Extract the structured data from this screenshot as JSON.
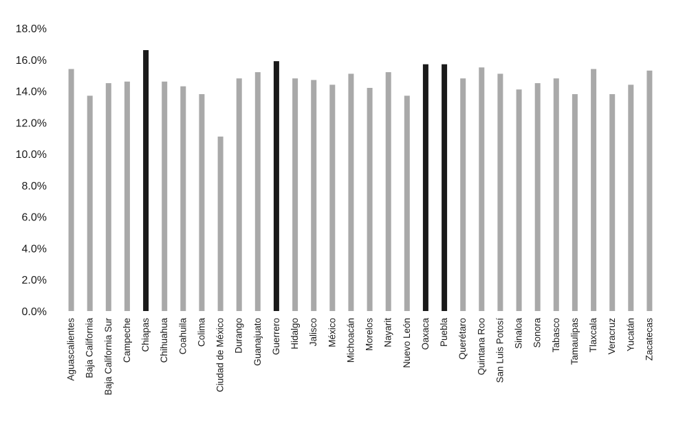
{
  "chart_data": {
    "type": "bar",
    "title": "",
    "xlabel": "",
    "ylabel": "",
    "ylim": [
      0,
      18
    ],
    "yticks": [
      "0.0%",
      "2.0%",
      "4.0%",
      "6.0%",
      "8.0%",
      "10.0%",
      "12.0%",
      "14.0%",
      "16.0%",
      "18.0%"
    ],
    "grid": false,
    "legend": "none",
    "categories": [
      "Aguascalientes",
      "Baja California",
      "Baja California Sur",
      "Campeche",
      "Chiapas",
      "Chihuahua",
      "Coahuila",
      "Colima",
      "Ciudad de México",
      "Durango",
      "Guanajuato",
      "Guerrero",
      "Hidalgo",
      "Jalisco",
      "México",
      "Michoacán",
      "Morelos",
      "Nayarit",
      "Nuevo León",
      "Oaxaca",
      "Puebla",
      "Querétaro",
      "Quintana Roo",
      "San Luis Potosí",
      "Sinaloa",
      "Sonora",
      "Tabasco",
      "Tamaulipas",
      "Tlaxcala",
      "Veracruz",
      "Yucatán",
      "Zacatecas"
    ],
    "values": [
      15.4,
      13.7,
      14.5,
      14.6,
      16.6,
      14.6,
      14.3,
      13.8,
      11.1,
      14.8,
      15.2,
      15.9,
      14.8,
      14.7,
      14.4,
      15.1,
      14.2,
      15.2,
      13.7,
      15.7,
      15.7,
      14.8,
      15.5,
      15.1,
      14.1,
      14.5,
      14.8,
      13.8,
      15.4,
      13.8,
      14.4,
      15.3
    ],
    "highlighted": [
      "Chiapas",
      "Guerrero",
      "Oaxaca",
      "Puebla"
    ],
    "colors": {
      "bar": "#a9a9a9",
      "highlight": "#1a1a1a"
    }
  }
}
